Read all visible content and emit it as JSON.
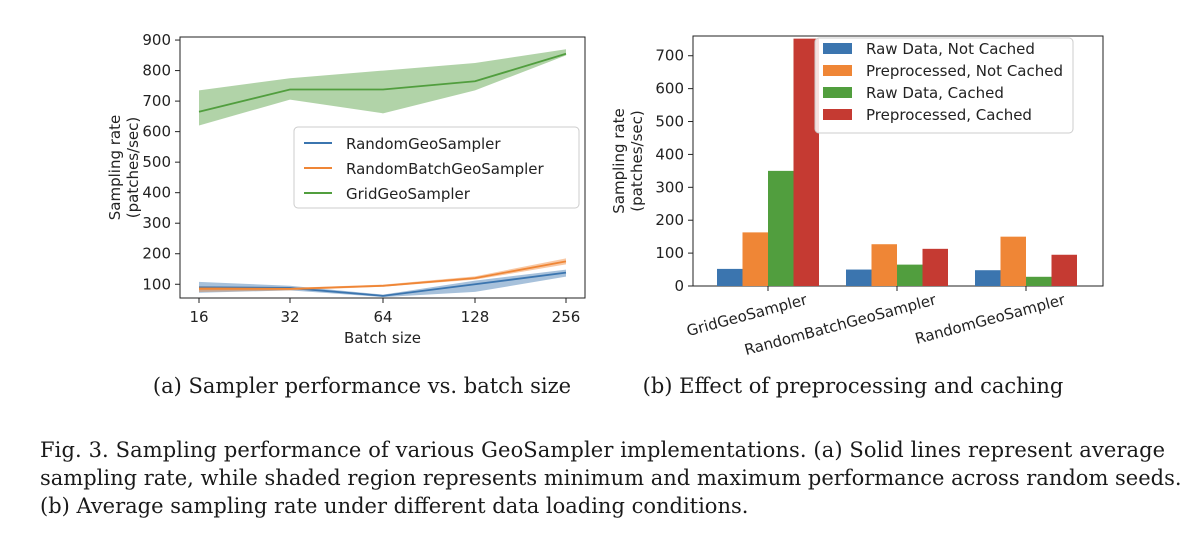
{
  "chart_data": [
    {
      "type": "line",
      "title": "",
      "subcaption": "(a) Sampler performance vs. batch size",
      "xlabel": "Batch size",
      "ylabel_lines": [
        "Sampling rate",
        "(patches/sec)"
      ],
      "x_ticks": [
        "16",
        "32",
        "64",
        "128",
        "256"
      ],
      "y_ticks": [
        100,
        200,
        300,
        400,
        500,
        600,
        700,
        800,
        900
      ],
      "ylim": [
        55,
        910
      ],
      "legend_location": "center-right",
      "series": [
        {
          "name": "RandomGeoSampler",
          "color": "#3b75af",
          "values": [
            90,
            88,
            62,
            100,
            138
          ],
          "min": [
            72,
            80,
            58,
            75,
            125
          ],
          "max": [
            108,
            95,
            66,
            112,
            148
          ]
        },
        {
          "name": "RandomBatchGeoSampler",
          "color": "#ef8636",
          "values": [
            85,
            85,
            95,
            120,
            175
          ],
          "min": [
            75,
            80,
            92,
            115,
            165
          ],
          "max": [
            92,
            88,
            99,
            126,
            185
          ]
        },
        {
          "name": "GridGeoSampler",
          "color": "#519e3e",
          "values": [
            665,
            738,
            738,
            765,
            855
          ],
          "min": [
            620,
            705,
            660,
            735,
            850
          ],
          "max": [
            735,
            775,
            800,
            825,
            870
          ]
        }
      ]
    },
    {
      "type": "bar",
      "title": "",
      "subcaption": "(b) Effect of preprocessing and caching",
      "xlabel": "",
      "ylabel_lines": [
        "Sampling rate",
        "(patches/sec)"
      ],
      "categories": [
        "GridGeoSampler",
        "RandomBatchGeoSampler",
        "RandomGeoSampler"
      ],
      "y_ticks": [
        0,
        100,
        200,
        300,
        400,
        500,
        600,
        700
      ],
      "ylim": [
        0,
        760
      ],
      "legend_location": "top-right",
      "series": [
        {
          "name": "Raw Data, Not Cached",
          "color": "#3b75af",
          "values": [
            52,
            50,
            48
          ]
        },
        {
          "name": "Preprocessed, Not Cached",
          "color": "#ef8636",
          "values": [
            163,
            127,
            150
          ]
        },
        {
          "name": "Raw Data, Cached",
          "color": "#519e3e",
          "values": [
            350,
            65,
            28
          ]
        },
        {
          "name": "Preprocessed, Cached",
          "color": "#c53a32",
          "values": [
            752,
            113,
            95
          ]
        }
      ]
    }
  ],
  "caption": {
    "line1": "Fig. 3.  Sampling performance of various GeoSampler implementations. (a) Solid lines represent average",
    "line2": "sampling rate, while shaded region represents minimum and maximum performance across random seeds.",
    "line3": "(b) Average sampling rate under different data loading conditions."
  }
}
